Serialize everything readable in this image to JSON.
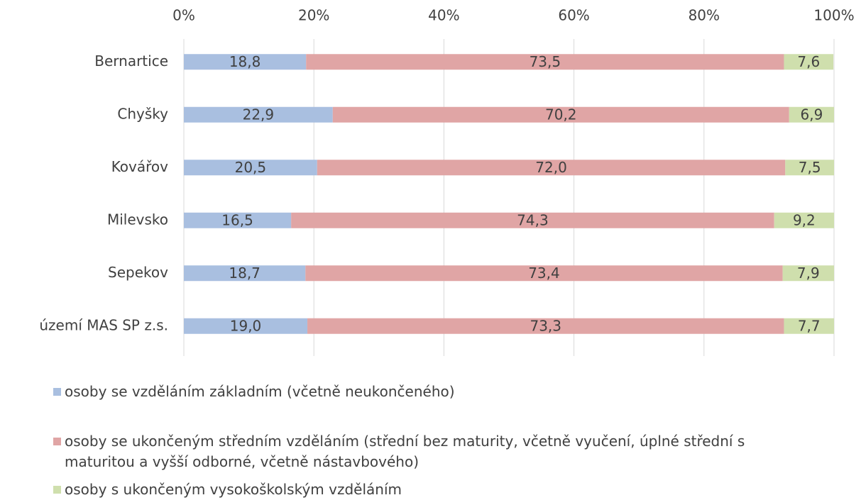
{
  "chart_data": {
    "type": "stacked-bar-horizontal",
    "categories": [
      "Bernartice",
      "Chyšky",
      "Kovářov",
      "Milevsko",
      "Sepekov",
      "území MAS SP z.s."
    ],
    "series": [
      {
        "name": "osoby se vzděláním základním (včetně neukončeného)",
        "color": "#a9bfe0",
        "values": [
          18.8,
          22.9,
          20.5,
          16.5,
          18.7,
          19.0
        ],
        "value_labels": [
          "18,8",
          "22,9",
          "20,5",
          "16,5",
          "18,7",
          "19,0"
        ]
      },
      {
        "name": "osoby se ukončeným středním vzděláním (střední bez maturity, včetně vyučení, úplné střední s maturitou a vyšší odborné, včetně nástavbového)",
        "color": "#e0a5a5",
        "values": [
          73.5,
          70.2,
          72.0,
          74.3,
          73.4,
          73.3
        ],
        "value_labels": [
          "73,5",
          "70,2",
          "72,0",
          "74,3",
          "73,4",
          "73,3"
        ]
      },
      {
        "name": "osoby s ukončeným vysokoškolským vzděláním",
        "color": "#cfdfad",
        "values": [
          7.6,
          6.9,
          7.5,
          9.2,
          7.9,
          7.7
        ],
        "value_labels": [
          "7,6",
          "6,9",
          "7,5",
          "9,2",
          "7,9",
          "7,7"
        ]
      }
    ],
    "xlim": [
      0,
      100
    ],
    "xticks": [
      {
        "value": 0,
        "label": "0%"
      },
      {
        "value": 20,
        "label": "20%"
      },
      {
        "value": 40,
        "label": "40%"
      },
      {
        "value": 60,
        "label": "60%"
      },
      {
        "value": 80,
        "label": "80%"
      },
      {
        "value": 100,
        "label": "100%"
      }
    ],
    "grid": true,
    "legend": "bottom"
  }
}
